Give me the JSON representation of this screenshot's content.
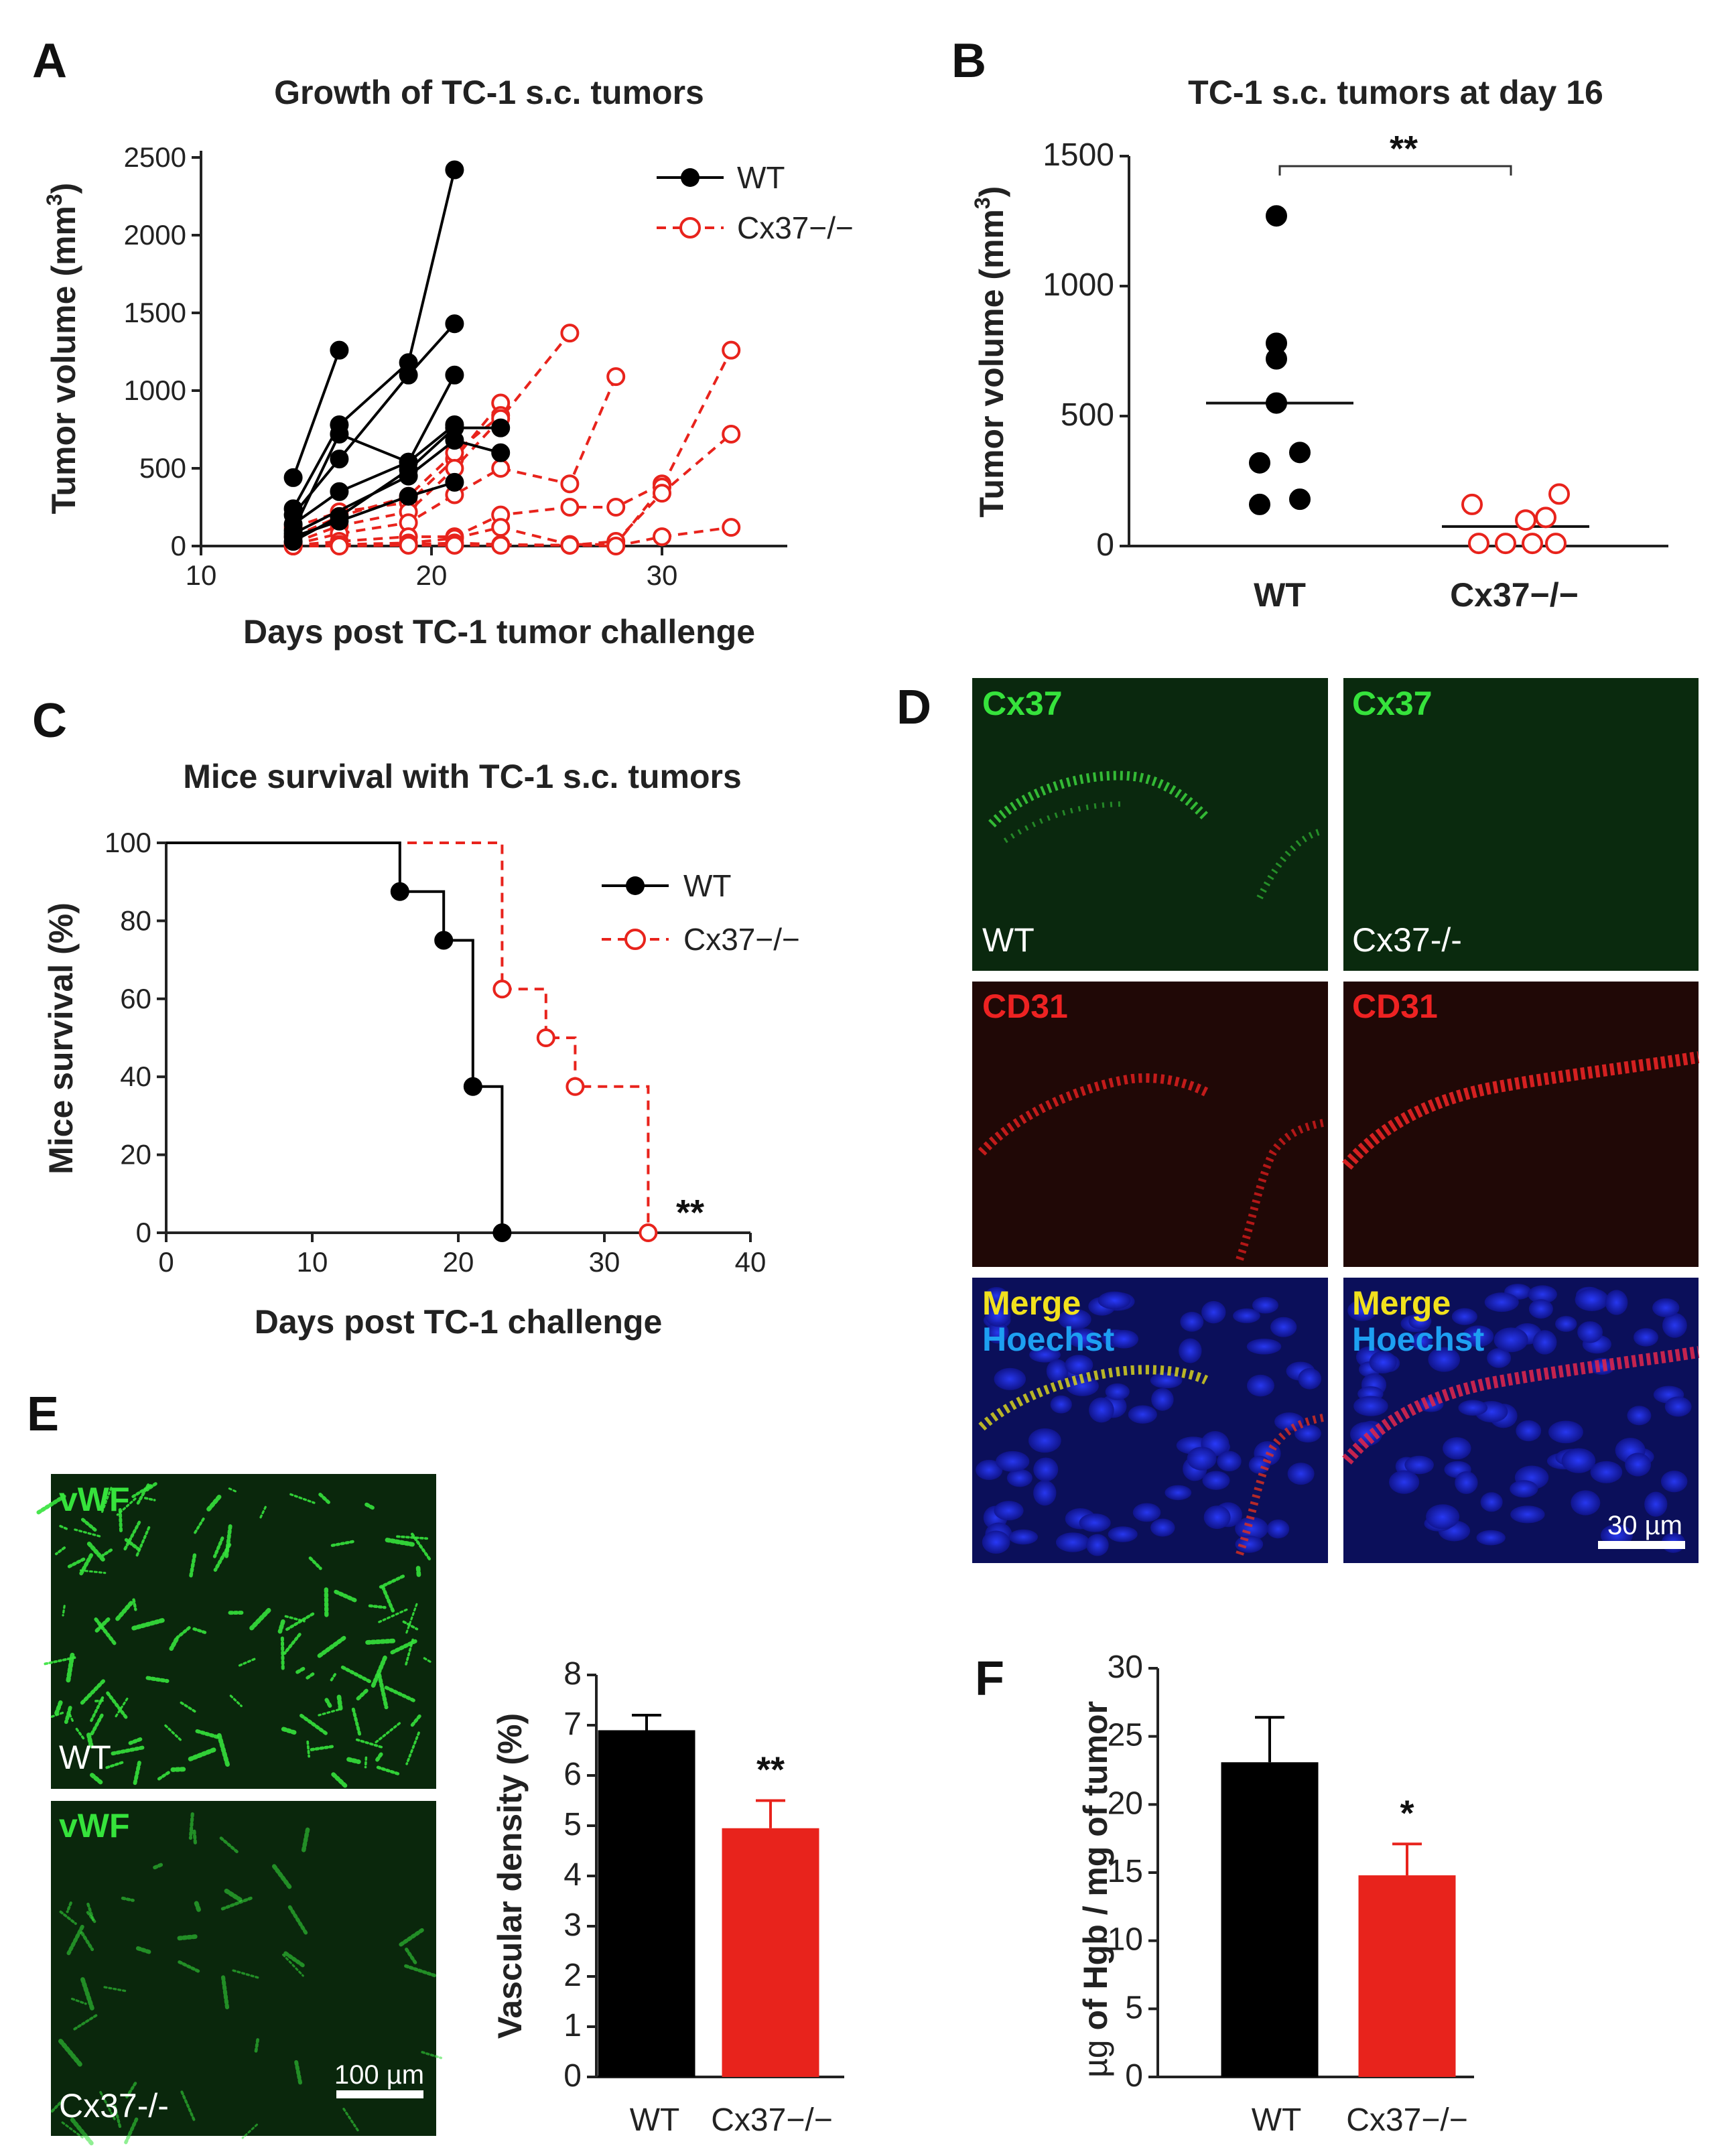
{
  "colors": {
    "wt": "#000000",
    "ko": "#e8231c",
    "green": "#36e33c",
    "red": "#ee2222",
    "yellow": "#f1e11d",
    "hoechst": "#1da0f2",
    "white": "#ffffff"
  },
  "panels": {
    "A": {
      "letter": "A"
    },
    "B": {
      "letter": "B"
    },
    "C": {
      "letter": "C"
    },
    "D": {
      "letter": "D",
      "labels": {
        "cx37": "Cx37",
        "cd31": "CD31",
        "merge": "Merge",
        "hoechst": "Hoechst",
        "wt": "WT",
        "ko": "Cx37-/-"
      },
      "scale_bar": "30 µm"
    },
    "E": {
      "letter": "E",
      "micro_labels": {
        "vwf": "vWF",
        "wt": "WT",
        "ko": "Cx37-/-"
      },
      "scale_bar": "100 µm"
    },
    "F": {
      "letter": "F"
    }
  },
  "chart_data": [
    {
      "id": "A",
      "type": "line",
      "title": "Growth of TC-1 s.c. tumors",
      "xlabel": "Days post TC-1 tumor challenge",
      "ylabel": "Tumor volume (mm",
      "ylabel_sup": "3",
      "ylabel_end": ")",
      "xlim": [
        10,
        35
      ],
      "ylim": [
        0,
        2500
      ],
      "xticks": [
        "10",
        "20",
        "30"
      ],
      "yticks": [
        "0",
        "500",
        "1000",
        "1500",
        "2000",
        "2500"
      ],
      "legend": [
        "WT",
        "Cx37−/−"
      ],
      "legend_position": "top-right",
      "series": [
        {
          "group": "WT",
          "x": [
            14,
            16
          ],
          "y": [
            440,
            1260
          ]
        },
        {
          "group": "WT",
          "x": [
            14,
            16,
            19,
            21
          ],
          "y": [
            240,
            780,
            1180,
            2420
          ]
        },
        {
          "group": "WT",
          "x": [
            14,
            16,
            19,
            21
          ],
          "y": [
            200,
            560,
            1100,
            1430
          ]
        },
        {
          "group": "WT",
          "x": [
            14,
            16,
            19,
            21
          ],
          "y": [
            140,
            350,
            540,
            1100
          ]
        },
        {
          "group": "WT",
          "x": [
            14,
            16,
            19,
            21
          ],
          "y": [
            100,
            720,
            540,
            780
          ]
        },
        {
          "group": "WT",
          "x": [
            14,
            16,
            19,
            21
          ],
          "y": [
            60,
            160,
            320,
            410
          ]
        },
        {
          "group": "WT",
          "x": [
            14,
            19,
            21,
            23
          ],
          "y": [
            80,
            450,
            680,
            600
          ]
        },
        {
          "group": "WT",
          "x": [
            14,
            16,
            19,
            21,
            23
          ],
          "y": [
            30,
            190,
            490,
            760,
            760
          ]
        },
        {
          "group": "KO",
          "x": [
            14,
            16,
            19,
            21,
            23
          ],
          "y": [
            120,
            220,
            280,
            560,
            920
          ]
        },
        {
          "group": "KO",
          "x": [
            14,
            16,
            19,
            21,
            23
          ],
          "y": [
            60,
            190,
            320,
            600,
            840
          ]
        },
        {
          "group": "KO",
          "x": [
            14,
            16,
            19,
            21,
            23,
            26
          ],
          "y": [
            20,
            130,
            220,
            500,
            820,
            1370
          ]
        },
        {
          "group": "KO",
          "x": [
            14,
            16,
            19,
            21,
            23,
            26,
            28
          ],
          "y": [
            10,
            80,
            150,
            330,
            500,
            400,
            1090
          ]
        },
        {
          "group": "KO",
          "x": [
            14,
            16,
            19,
            21,
            23,
            26,
            28,
            30
          ],
          "y": [
            5,
            30,
            60,
            60,
            200,
            250,
            250,
            400
          ]
        },
        {
          "group": "KO",
          "x": [
            14,
            16,
            19,
            21,
            23,
            26,
            28,
            30,
            33
          ],
          "y": [
            0,
            10,
            20,
            50,
            120,
            10,
            10,
            380,
            1260
          ]
        },
        {
          "group": "KO",
          "x": [
            14,
            16,
            19,
            21,
            23,
            26,
            28,
            30,
            33
          ],
          "y": [
            0,
            5,
            10,
            20,
            10,
            5,
            30,
            340,
            720
          ]
        },
        {
          "group": "KO",
          "x": [
            14,
            16,
            19,
            21,
            23,
            26,
            28,
            30,
            33
          ],
          "y": [
            0,
            0,
            5,
            5,
            5,
            5,
            0,
            60,
            120
          ]
        }
      ]
    },
    {
      "id": "B",
      "type": "scatter",
      "title": "TC-1 s.c. tumors at day 16",
      "xlabel": "",
      "ylabel": "Tumor volume (mm",
      "ylabel_sup": "3",
      "ylabel_end": ")",
      "ylim": [
        0,
        1500
      ],
      "yticks": [
        "0",
        "500",
        "1000",
        "1500"
      ],
      "categories": [
        "WT",
        "Cx37−/−"
      ],
      "series": [
        {
          "name": "WT",
          "values": [
            1270,
            780,
            720,
            550,
            360,
            320,
            180,
            160
          ],
          "mean": 550
        },
        {
          "name": "Cx37−/−",
          "values": [
            160,
            200,
            100,
            110,
            10,
            10,
            10,
            10
          ],
          "mean": 75
        }
      ],
      "significance": "**"
    },
    {
      "id": "C",
      "type": "line",
      "subtype": "survival-step",
      "title": "Mice survival with TC-1 s.c.  tumors",
      "xlabel": "Days post TC-1 challenge",
      "ylabel": "Mice survival (%)",
      "xlim": [
        0,
        40
      ],
      "ylim": [
        0,
        100
      ],
      "xticks": [
        "0",
        "10",
        "20",
        "30",
        "40"
      ],
      "yticks": [
        "0",
        "20",
        "40",
        "60",
        "80",
        "100"
      ],
      "legend": [
        "WT",
        "Cx37−/−"
      ],
      "legend_position": "top-right",
      "series": [
        {
          "name": "WT",
          "x": [
            0,
            16,
            19,
            21,
            23
          ],
          "y": [
            100,
            87.5,
            75,
            37.5,
            0
          ]
        },
        {
          "name": "Cx37−/−",
          "x": [
            0,
            23,
            26,
            28,
            33
          ],
          "y": [
            100,
            62.5,
            50,
            37.5,
            0
          ]
        }
      ],
      "significance": "**"
    },
    {
      "id": "E",
      "type": "bar",
      "title": "",
      "xlabel": "",
      "ylabel": "Vascular density (%)",
      "ylim": [
        0,
        8
      ],
      "yticks": [
        "0",
        "1",
        "2",
        "3",
        "4",
        "5",
        "6",
        "7",
        "8"
      ],
      "categories": [
        "WT",
        "Cx37−/−"
      ],
      "values": [
        6.9,
        4.95
      ],
      "errors": [
        0.3,
        0.55
      ],
      "significance": "**"
    },
    {
      "id": "F",
      "type": "bar",
      "title": "",
      "xlabel": "",
      "ylabel_prefix": "µg",
      "ylabel": " of Hgb / mg of tumor",
      "ylim": [
        0,
        30
      ],
      "yticks": [
        "0",
        "5",
        "10",
        "15",
        "20",
        "25",
        "30"
      ],
      "categories": [
        "WT",
        "Cx37−/−"
      ],
      "values": [
        23.1,
        14.8
      ],
      "errors": [
        3.3,
        2.3
      ],
      "significance": "*"
    }
  ]
}
